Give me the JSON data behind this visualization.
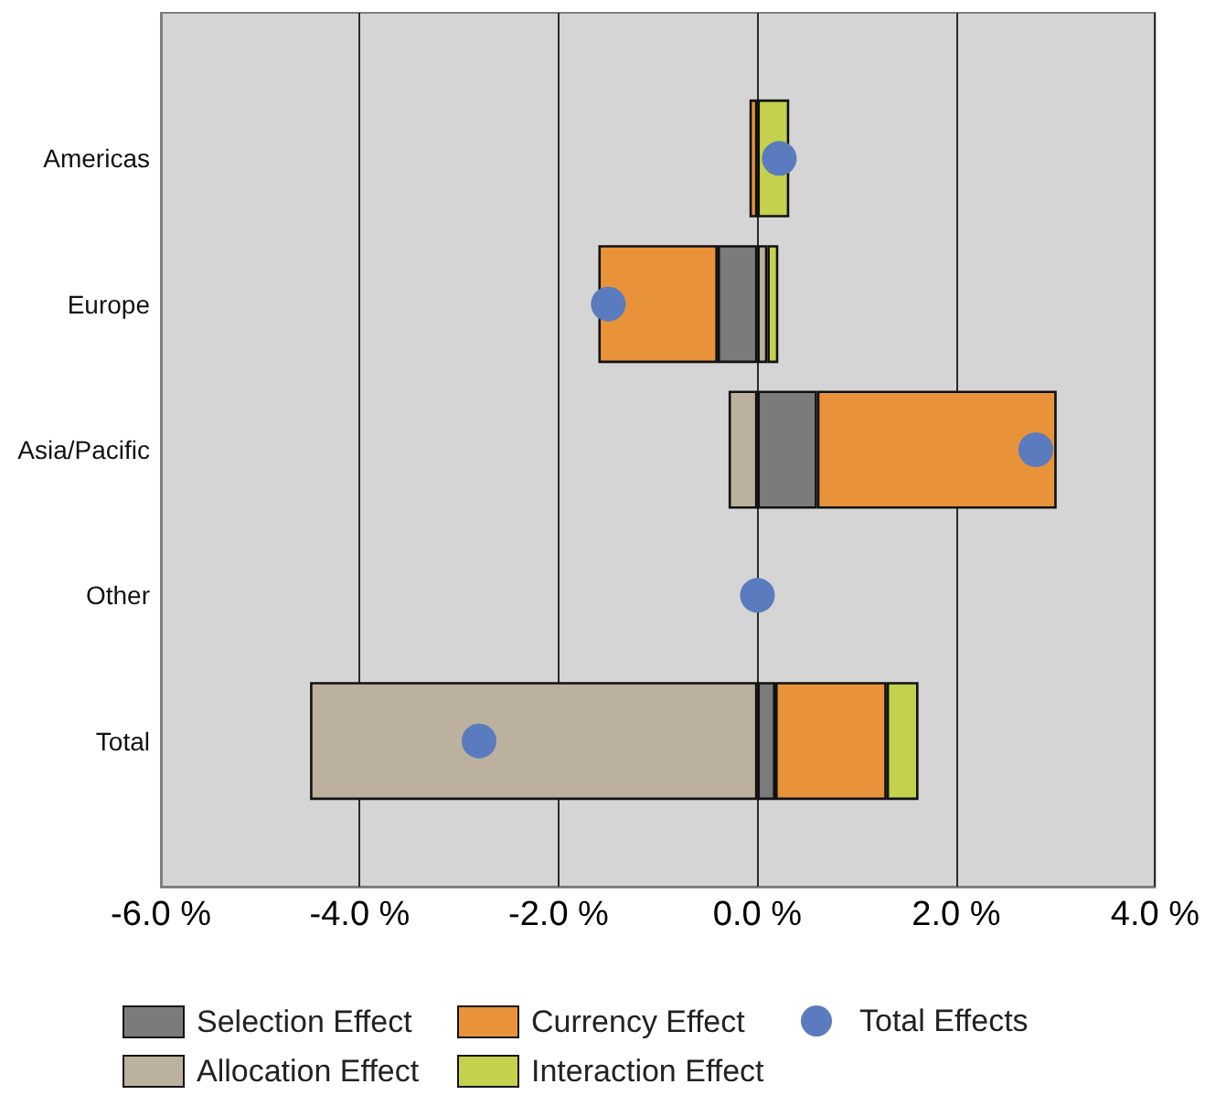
{
  "chart_data": {
    "type": "bar",
    "orientation": "horizontal",
    "stacked": true,
    "categories": [
      "Americas",
      "Europe",
      "Asia/Pacific",
      "Other",
      "Total"
    ],
    "series": [
      {
        "name": "Selection Effect",
        "color": "#7b7b7b",
        "values": [
          null,
          -0.4,
          0.6,
          null,
          0.18
        ]
      },
      {
        "name": "Allocation Effect",
        "color": "#bcb19f",
        "values": [
          null,
          0.1,
          -0.29,
          null,
          -4.5
        ]
      },
      {
        "name": "Currency Effect",
        "color": "#e8923a",
        "values": [
          -0.08,
          -1.2,
          2.41,
          null,
          1.12
        ]
      },
      {
        "name": "Interaction Effect",
        "color": "#c3d14c",
        "values": [
          0.32,
          0.11,
          null,
          null,
          0.32
        ]
      },
      {
        "name": "Total Effects",
        "type": "scatter",
        "marker": "circle",
        "color": "#5a7bbd",
        "x": [
          "Americas",
          "Europe",
          "Asia/Pacific",
          "Other",
          "Total"
        ],
        "values": [
          0.22,
          -1.5,
          2.8,
          0,
          -2.8
        ]
      }
    ],
    "xlim": [
      -6,
      4
    ],
    "xticks": [
      {
        "value": -6,
        "label": "-6.0 %"
      },
      {
        "value": -4,
        "label": "-4.0 %"
      },
      {
        "value": -2,
        "label": "-2.0 %"
      },
      {
        "value": 0,
        "label": "0.0 %"
      },
      {
        "value": 2,
        "label": "2.0 %"
      },
      {
        "value": 4,
        "label": "4.0 %"
      }
    ],
    "grid": "x",
    "legend": "bottom"
  }
}
